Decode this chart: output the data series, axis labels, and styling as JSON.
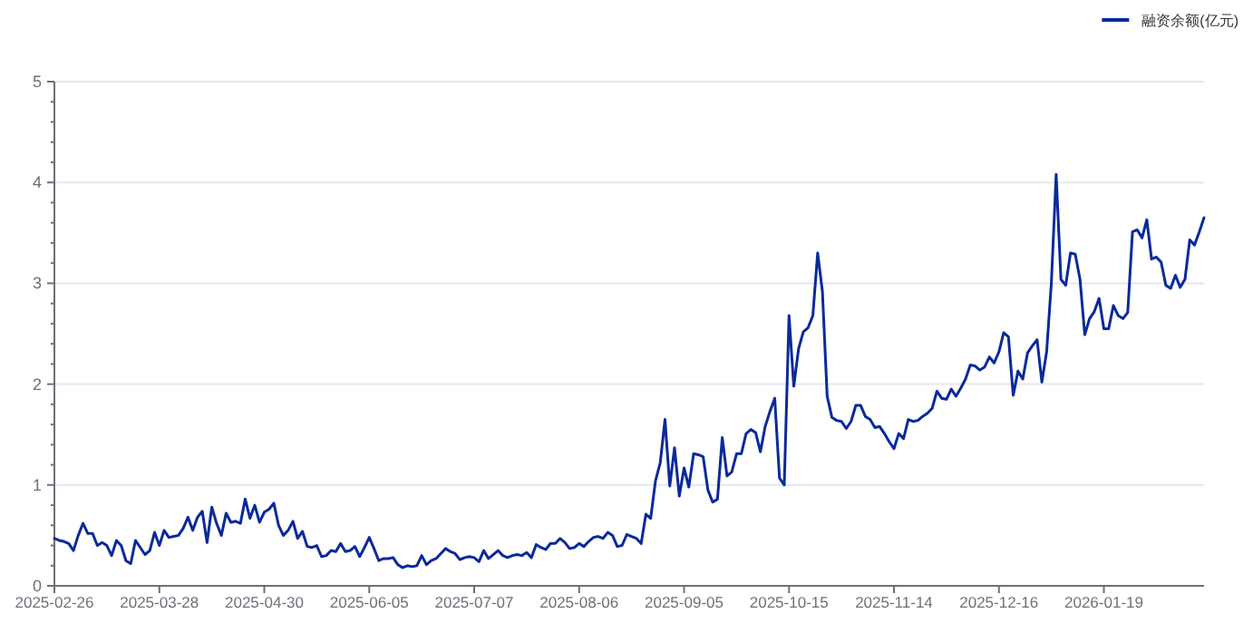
{
  "chart_data": {
    "type": "line",
    "categories": [
      "2025-02-26",
      null,
      null,
      null,
      null,
      null,
      null,
      null,
      null,
      null,
      null,
      null,
      null,
      null,
      null,
      null,
      null,
      null,
      null,
      null,
      null,
      null,
      "2025-03-28",
      null,
      null,
      null,
      null,
      null,
      null,
      null,
      null,
      null,
      null,
      null,
      null,
      null,
      null,
      null,
      null,
      null,
      null,
      null,
      null,
      null,
      "2025-04-30",
      null,
      null,
      null,
      null,
      null,
      null,
      null,
      null,
      null,
      null,
      null,
      null,
      null,
      null,
      null,
      null,
      null,
      null,
      null,
      null,
      null,
      "2025-06-05",
      null,
      null,
      null,
      null,
      null,
      null,
      null,
      null,
      null,
      null,
      null,
      null,
      null,
      null,
      null,
      null,
      null,
      null,
      null,
      null,
      null,
      "2025-07-07",
      null,
      null,
      null,
      null,
      null,
      null,
      null,
      null,
      null,
      null,
      null,
      null,
      null,
      null,
      null,
      null,
      null,
      null,
      null,
      null,
      null,
      "2025-08-06",
      null,
      null,
      null,
      null,
      null,
      null,
      null,
      null,
      null,
      null,
      null,
      null,
      null,
      null,
      null,
      null,
      null,
      null,
      null,
      null,
      null,
      "2025-09-05",
      null,
      null,
      null,
      null,
      null,
      null,
      null,
      null,
      null,
      null,
      null,
      null,
      null,
      null,
      null,
      null,
      null,
      null,
      null,
      null,
      null,
      "2025-10-15",
      null,
      null,
      null,
      null,
      null,
      null,
      null,
      null,
      null,
      null,
      null,
      null,
      null,
      null,
      null,
      null,
      null,
      null,
      null,
      null,
      null,
      "2025-11-14",
      null,
      null,
      null,
      null,
      null,
      null,
      null,
      null,
      null,
      null,
      null,
      null,
      null,
      null,
      null,
      null,
      null,
      null,
      null,
      null,
      null,
      "2025-12-16",
      null,
      null,
      null,
      null,
      null,
      null,
      null,
      null,
      null,
      null,
      null,
      null,
      null,
      null,
      null,
      null,
      null,
      null,
      null,
      null,
      null,
      "2026-01-19",
      null,
      null,
      null,
      null,
      null,
      null,
      null,
      null,
      null,
      null,
      null,
      null,
      null,
      null,
      null,
      null,
      null,
      null,
      null,
      null,
      null
    ],
    "series": [
      {
        "name": "融资余额(亿元)",
        "color": "#0a2a9a",
        "values": [
          0.47,
          0.45,
          0.44,
          0.42,
          0.35,
          0.5,
          0.62,
          0.52,
          0.52,
          0.4,
          0.43,
          0.4,
          0.3,
          0.45,
          0.4,
          0.25,
          0.22,
          0.45,
          0.38,
          0.31,
          0.35,
          0.53,
          0.4,
          0.55,
          0.48,
          0.49,
          0.5,
          0.57,
          0.68,
          0.55,
          0.68,
          0.74,
          0.43,
          0.78,
          0.62,
          0.5,
          0.72,
          0.63,
          0.64,
          0.62,
          0.86,
          0.67,
          0.8,
          0.63,
          0.73,
          0.76,
          0.82,
          0.6,
          0.5,
          0.55,
          0.64,
          0.47,
          0.54,
          0.39,
          0.38,
          0.4,
          0.29,
          0.3,
          0.35,
          0.34,
          0.42,
          0.34,
          0.35,
          0.39,
          0.29,
          0.38,
          0.48,
          0.37,
          0.25,
          0.27,
          0.27,
          0.28,
          0.21,
          0.18,
          0.2,
          0.19,
          0.2,
          0.3,
          0.21,
          0.25,
          0.27,
          0.32,
          0.37,
          0.34,
          0.32,
          0.26,
          0.28,
          0.29,
          0.28,
          0.24,
          0.35,
          0.27,
          0.31,
          0.35,
          0.3,
          0.28,
          0.3,
          0.31,
          0.3,
          0.33,
          0.28,
          0.41,
          0.38,
          0.36,
          0.42,
          0.42,
          0.47,
          0.43,
          0.37,
          0.38,
          0.42,
          0.39,
          0.44,
          0.48,
          0.49,
          0.47,
          0.53,
          0.5,
          0.39,
          0.4,
          0.51,
          0.49,
          0.47,
          0.42,
          0.71,
          0.67,
          1.04,
          1.22,
          1.65,
          0.99,
          1.37,
          0.89,
          1.17,
          0.98,
          1.31,
          1.3,
          1.28,
          0.95,
          0.83,
          0.86,
          1.47,
          1.09,
          1.13,
          1.31,
          1.31,
          1.51,
          1.55,
          1.52,
          1.33,
          1.58,
          1.73,
          1.86,
          1.07,
          1.0,
          2.68,
          1.98,
          2.35,
          2.52,
          2.56,
          2.68,
          3.3,
          2.92,
          1.88,
          1.67,
          1.64,
          1.63,
          1.56,
          1.63,
          1.79,
          1.79,
          1.68,
          1.65,
          1.57,
          1.58,
          1.51,
          1.43,
          1.36,
          1.51,
          1.46,
          1.65,
          1.63,
          1.64,
          1.68,
          1.71,
          1.76,
          1.93,
          1.86,
          1.85,
          1.95,
          1.88,
          1.96,
          2.05,
          2.19,
          2.18,
          2.14,
          2.17,
          2.27,
          2.21,
          2.32,
          2.51,
          2.47,
          1.89,
          2.13,
          2.05,
          2.31,
          2.38,
          2.44,
          2.02,
          2.32,
          3.01,
          4.08,
          3.04,
          2.98,
          3.3,
          3.29,
          3.04,
          2.49,
          2.65,
          2.72,
          2.85,
          2.55,
          2.55,
          2.78,
          2.68,
          2.65,
          2.71,
          3.51,
          3.53,
          3.45,
          3.63,
          3.24,
          3.26,
          3.21,
          2.98,
          2.95,
          3.08,
          2.96,
          3.04,
          3.43,
          3.38,
          3.51,
          3.65
        ]
      }
    ],
    "ylim": [
      0,
      5
    ],
    "yticks": [
      0,
      1,
      2,
      3,
      4,
      5
    ],
    "grid": "y",
    "legend": "top right"
  }
}
